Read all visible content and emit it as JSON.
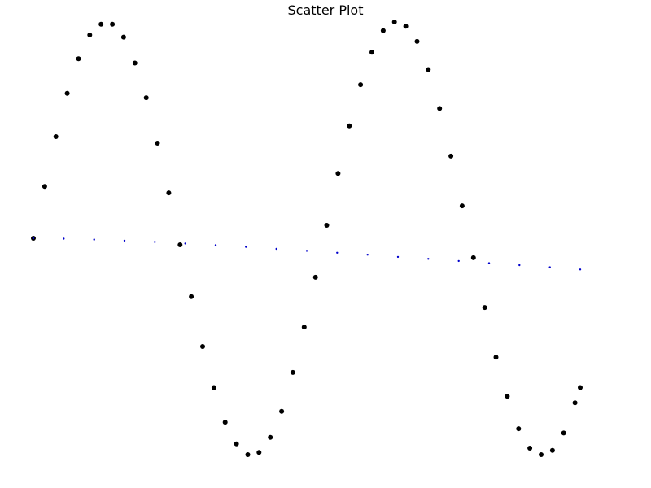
{
  "chart_data": {
    "type": "scatter",
    "title": "Scatter Plot",
    "xlabel": "",
    "ylabel": "",
    "grid": false,
    "axes_visible": false,
    "xlim": [
      0,
      6.3
    ],
    "ylim": [
      -1.0,
      1.0
    ],
    "series": [
      {
        "color": "#000000",
        "marker": "circle",
        "x": [
          0.0,
          0.13,
          0.26,
          0.39,
          0.52,
          0.65,
          0.78,
          0.91,
          1.04,
          1.17,
          1.3,
          1.43,
          1.56,
          1.69,
          1.82,
          1.95,
          2.08,
          2.21,
          2.34,
          2.47,
          2.6,
          2.73,
          2.86,
          2.99,
          3.12,
          3.25,
          3.38,
          3.51,
          3.64,
          3.77,
          3.9,
          4.03,
          4.16,
          4.29,
          4.42,
          4.55,
          4.68,
          4.81,
          4.94,
          5.07,
          5.2,
          5.33,
          5.46,
          5.59,
          5.72,
          5.85,
          5.98,
          6.11,
          6.24,
          6.3
        ],
        "y": [
          0.0,
          0.24,
          0.47,
          0.67,
          0.83,
          0.94,
          0.99,
          0.99,
          0.93,
          0.81,
          0.65,
          0.44,
          0.21,
          -0.03,
          -0.27,
          -0.5,
          -0.69,
          -0.85,
          -0.95,
          -1.0,
          -0.99,
          -0.92,
          -0.8,
          -0.62,
          -0.41,
          -0.18,
          0.06,
          0.3,
          0.52,
          0.71,
          0.86,
          0.96,
          1.0,
          0.98,
          0.91,
          0.78,
          0.6,
          0.38,
          0.15,
          -0.09,
          -0.32,
          -0.55,
          -0.73,
          -0.88,
          -0.97,
          -1.0,
          -0.98,
          -0.9,
          -0.76,
          -0.69
        ]
      },
      {
        "color": "#0000cc",
        "marker": "point",
        "x": [
          0.0,
          0.35,
          0.7,
          1.05,
          1.4,
          1.75,
          2.1,
          2.45,
          2.8,
          3.15,
          3.5,
          3.85,
          4.2,
          4.55,
          4.9,
          5.25,
          5.6,
          5.95,
          6.3
        ],
        "y": [
          0.0,
          -0.002,
          -0.006,
          -0.011,
          -0.017,
          -0.024,
          -0.032,
          -0.04,
          -0.049,
          -0.058,
          -0.067,
          -0.076,
          -0.086,
          -0.095,
          -0.105,
          -0.115,
          -0.124,
          -0.134,
          -0.144
        ]
      }
    ]
  }
}
